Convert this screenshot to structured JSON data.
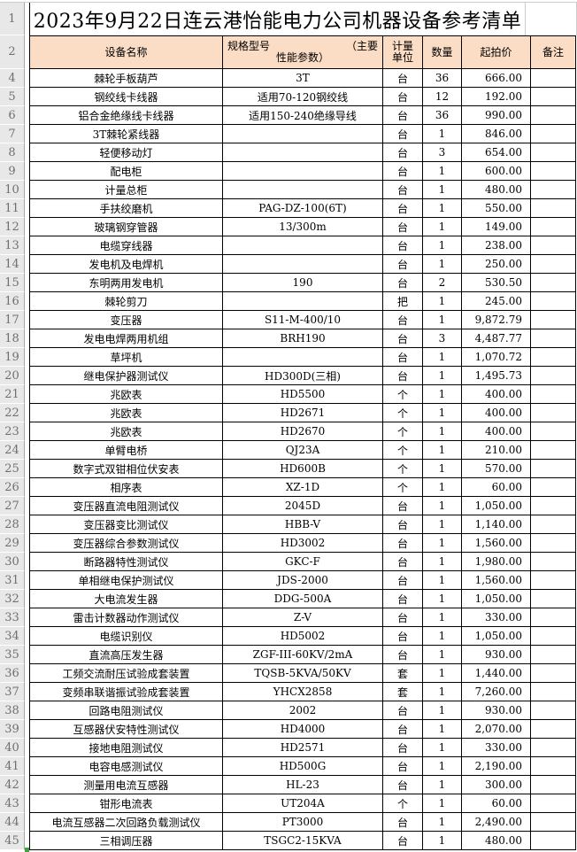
{
  "title": "2023年9月22日连云港怡能电力公司机器设备参考清单",
  "gutter": {
    "title_row": "1",
    "header_row": "2"
  },
  "columns": {
    "name": "设备名称",
    "spec_line1_left": "规格型号",
    "spec_line1_right": "（主要",
    "spec_line2": "性能参数）",
    "unit_line1": "计量",
    "unit_line2": "单位",
    "qty": "数量",
    "price": "起拍价",
    "note": "备注"
  },
  "colors": {
    "header_bg": "#FBDCC5",
    "table_border": "#000000",
    "gutter_bg": "#E8E8E8",
    "gutter_text": "#6F6F6F",
    "gridline": "#CCCCCC",
    "selection_green": "#3FA23C"
  },
  "rows": [
    {
      "n": "4",
      "name": "棘轮手板葫芦",
      "spec": "3T",
      "unit": "台",
      "qty": "36",
      "price": "666.00",
      "note": ""
    },
    {
      "n": "5",
      "name": "钢绞线卡线器",
      "spec": "适用70-120钢绞线",
      "unit": "台",
      "qty": "12",
      "price": "192.00",
      "note": ""
    },
    {
      "n": "6",
      "name": "铝合金绝缘线卡线器",
      "spec": "适用150-240绝缘导线",
      "unit": "台",
      "qty": "36",
      "price": "990.00",
      "note": ""
    },
    {
      "n": "7",
      "name": "3T棘轮紧线器",
      "spec": "",
      "unit": "台",
      "qty": "1",
      "price": "846.00",
      "note": ""
    },
    {
      "n": "8",
      "name": "轻便移动灯",
      "spec": "",
      "unit": "台",
      "qty": "3",
      "price": "654.00",
      "note": ""
    },
    {
      "n": "9",
      "name": "配电柜",
      "spec": "",
      "unit": "台",
      "qty": "1",
      "price": "600.00",
      "note": ""
    },
    {
      "n": "10",
      "name": "计量总柜",
      "spec": "",
      "unit": "台",
      "qty": "1",
      "price": "480.00",
      "note": ""
    },
    {
      "n": "11",
      "name": "手扶绞磨机",
      "spec": "PAG-DZ-100(6T)",
      "unit": "台",
      "qty": "1",
      "price": "550.00",
      "note": ""
    },
    {
      "n": "12",
      "name": "玻璃钢穿管器",
      "spec": "13/300m",
      "unit": "台",
      "qty": "1",
      "price": "149.00",
      "note": ""
    },
    {
      "n": "13",
      "name": "电缆穿线器",
      "spec": "",
      "unit": "台",
      "qty": "1",
      "price": "238.00",
      "note": ""
    },
    {
      "n": "14",
      "name": "发电机及电焊机",
      "spec": "",
      "unit": "台",
      "qty": "1",
      "price": "250.00",
      "note": ""
    },
    {
      "n": "15",
      "name": "东明两用发电机",
      "spec": "190",
      "unit": "台",
      "qty": "2",
      "price": "530.50",
      "note": ""
    },
    {
      "n": "16",
      "name": "棘轮剪刀",
      "spec": "",
      "unit": "把",
      "qty": "1",
      "price": "245.00",
      "note": ""
    },
    {
      "n": "17",
      "name": "变压器",
      "spec": "S11-M-400/10",
      "unit": "台",
      "qty": "1",
      "price": "9,872.79",
      "note": ""
    },
    {
      "n": "18",
      "name": "发电电焊两用机组",
      "spec": "BRH190",
      "unit": "台",
      "qty": "3",
      "price": "4,487.77",
      "note": ""
    },
    {
      "n": "19",
      "name": "草坪机",
      "spec": "",
      "unit": "台",
      "qty": "1",
      "price": "1,070.72",
      "note": ""
    },
    {
      "n": "20",
      "name": "继电保护器测试仪",
      "spec": "HD300D(三相)",
      "unit": "台",
      "qty": "1",
      "price": "1,495.73",
      "note": ""
    },
    {
      "n": "21",
      "name": "兆欧表",
      "spec": "HD5500",
      "unit": "个",
      "qty": "1",
      "price": "400.00",
      "note": ""
    },
    {
      "n": "22",
      "name": "兆欧表",
      "spec": "HD2671",
      "unit": "个",
      "qty": "1",
      "price": "400.00",
      "note": ""
    },
    {
      "n": "23",
      "name": "兆欧表",
      "spec": "HD2670",
      "unit": "个",
      "qty": "1",
      "price": "400.00",
      "note": ""
    },
    {
      "n": "24",
      "name": "单臂电桥",
      "spec": "QJ23A",
      "unit": "个",
      "qty": "1",
      "price": "210.00",
      "note": ""
    },
    {
      "n": "25",
      "name": "数字式双钳相位伏安表",
      "spec": "HD600B",
      "unit": "个",
      "qty": "1",
      "price": "570.00",
      "note": ""
    },
    {
      "n": "26",
      "name": "相序表",
      "spec": "XZ-1D",
      "unit": "个",
      "qty": "1",
      "price": "60.00",
      "note": ""
    },
    {
      "n": "27",
      "name": "变压器直流电阻测试仪",
      "spec": "2045D",
      "unit": "台",
      "qty": "1",
      "price": "1,050.00",
      "note": ""
    },
    {
      "n": "28",
      "name": "变压器变比测试仪",
      "spec": "HBB-V",
      "unit": "台",
      "qty": "1",
      "price": "1,140.00",
      "note": ""
    },
    {
      "n": "29",
      "name": "变压器综合参数测试仪",
      "spec": "HD3002",
      "unit": "台",
      "qty": "1",
      "price": "1,560.00",
      "note": ""
    },
    {
      "n": "30",
      "name": "断路器特性测试仪",
      "spec": "GKC-F",
      "unit": "台",
      "qty": "1",
      "price": "1,980.00",
      "note": ""
    },
    {
      "n": "31",
      "name": "单相继电保护测试仪",
      "spec": "JDS-2000",
      "unit": "台",
      "qty": "1",
      "price": "1,560.00",
      "note": ""
    },
    {
      "n": "32",
      "name": "大电流发生器",
      "spec": "DDG-500A",
      "unit": "台",
      "qty": "1",
      "price": "1,050.00",
      "note": ""
    },
    {
      "n": "33",
      "name": "雷击计数器动作测试仪",
      "spec": "Z-V",
      "unit": "台",
      "qty": "1",
      "price": "330.00",
      "note": ""
    },
    {
      "n": "34",
      "name": "电缆识别仪",
      "spec": "HD5002",
      "unit": "台",
      "qty": "1",
      "price": "1,050.00",
      "note": ""
    },
    {
      "n": "35",
      "name": "直流高压发生器",
      "spec": "ZGF-III-60KV/2mA",
      "unit": "台",
      "qty": "1",
      "price": "930.00",
      "note": ""
    },
    {
      "n": "36",
      "name": "工频交流耐压试验成套装置",
      "spec": "TQSB-5KVA/50KV",
      "unit": "套",
      "qty": "1",
      "price": "1,440.00",
      "note": ""
    },
    {
      "n": "37",
      "name": "变频串联谐振试验成套装置",
      "spec": "YHCX2858",
      "unit": "套",
      "qty": "1",
      "price": "7,260.00",
      "note": ""
    },
    {
      "n": "38",
      "name": "回路电阻测试仪",
      "spec": "2002",
      "unit": "台",
      "qty": "1",
      "price": "930.00",
      "note": ""
    },
    {
      "n": "39",
      "name": "互感器伏安特性测试仪",
      "spec": "HD4000",
      "unit": "台",
      "qty": "1",
      "price": "2,070.00",
      "note": ""
    },
    {
      "n": "40",
      "name": "接地电阻测试仪",
      "spec": "HD2571",
      "unit": "台",
      "qty": "1",
      "price": "330.00",
      "note": ""
    },
    {
      "n": "41",
      "name": "电容电感测试仪",
      "spec": "HD500G",
      "unit": "台",
      "qty": "1",
      "price": "2,190.00",
      "note": ""
    },
    {
      "n": "42",
      "name": "测量用电流互感器",
      "spec": "HL-23",
      "unit": "台",
      "qty": "1",
      "price": "300.00",
      "note": ""
    },
    {
      "n": "43",
      "name": "钳形电流表",
      "spec": "UT204A",
      "unit": "个",
      "qty": "1",
      "price": "60.00",
      "note": ""
    },
    {
      "n": "44",
      "name": "电流互感器二次回路负载测试仪",
      "spec": "PT3000",
      "unit": "台",
      "qty": "1",
      "price": "2,490.00",
      "note": ""
    },
    {
      "n": "45",
      "name": "三相调压器",
      "spec": "TSGC2-15KVA",
      "unit": "台",
      "qty": "1",
      "price": "480.00",
      "note": ""
    }
  ]
}
